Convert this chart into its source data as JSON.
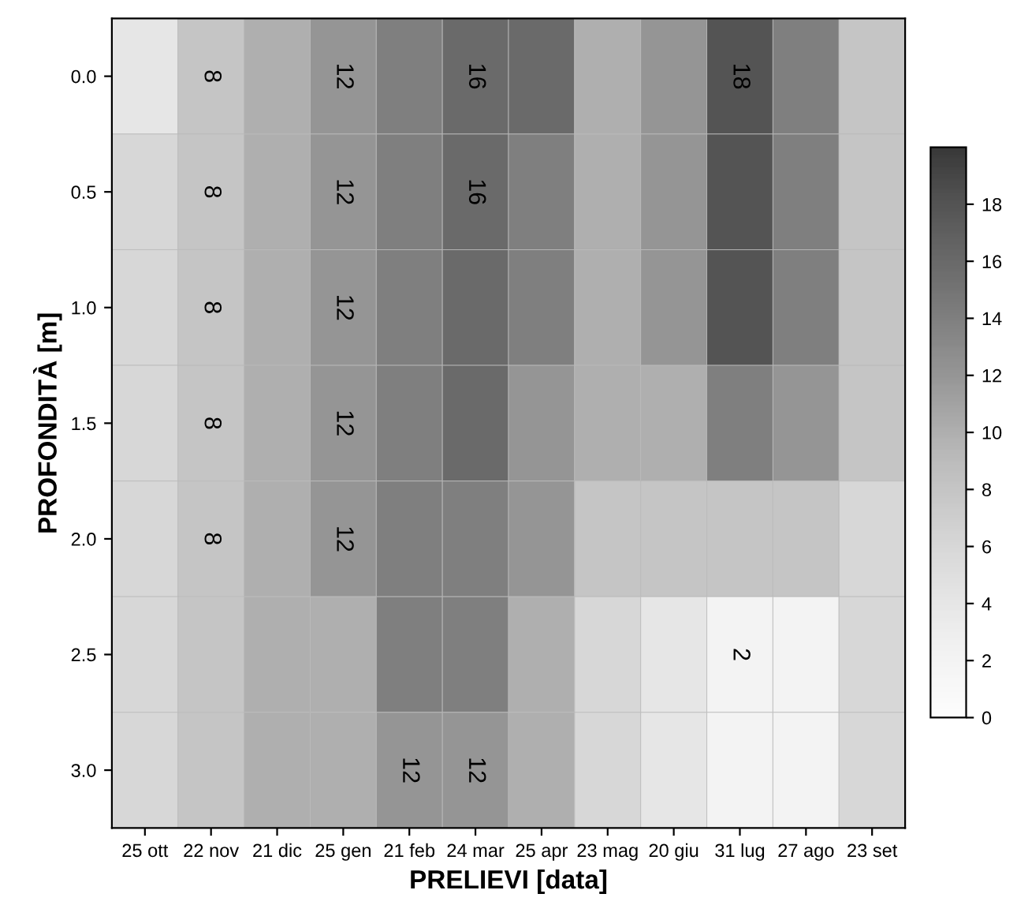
{
  "chart_data": {
    "type": "heatmap",
    "xlabel": "PRELIEVI [data]",
    "ylabel": "PROFONDITÀ [m]",
    "categories": [
      "25 ott",
      "22 nov",
      "21 dic",
      "25 gen",
      "21 feb",
      "24 mar",
      "25 apr",
      "23 mag",
      "20 giu",
      "31 lug",
      "27 ago",
      "23 set"
    ],
    "y_categories": [
      "0.0",
      "0.5",
      "1.0",
      "1.5",
      "2.0",
      "2.5",
      "3.0"
    ],
    "cells": [
      [
        4,
        8,
        10,
        12,
        14,
        16,
        16,
        10,
        12,
        18,
        14,
        8
      ],
      [
        6,
        8,
        10,
        12,
        14,
        16,
        14,
        10,
        12,
        18,
        14,
        8
      ],
      [
        6,
        8,
        10,
        12,
        14,
        16,
        14,
        10,
        12,
        18,
        14,
        8
      ],
      [
        6,
        8,
        10,
        12,
        14,
        16,
        12,
        10,
        10,
        14,
        12,
        8
      ],
      [
        6,
        8,
        10,
        12,
        14,
        14,
        12,
        8,
        8,
        8,
        8,
        6
      ],
      [
        6,
        8,
        10,
        10,
        14,
        14,
        10,
        6,
        4,
        2,
        2,
        6
      ],
      [
        6,
        8,
        10,
        10,
        12,
        12,
        10,
        6,
        4,
        2,
        2,
        6
      ]
    ],
    "clim": [
      0,
      20
    ],
    "cticks": [
      0,
      2,
      4,
      6,
      8,
      10,
      12,
      14,
      16,
      18
    ],
    "annotations": [
      "8",
      "8",
      "8",
      "12",
      "12",
      "16",
      "12",
      "12",
      "8",
      "12",
      "18",
      "16",
      "12",
      "12",
      "8",
      "2"
    ]
  }
}
